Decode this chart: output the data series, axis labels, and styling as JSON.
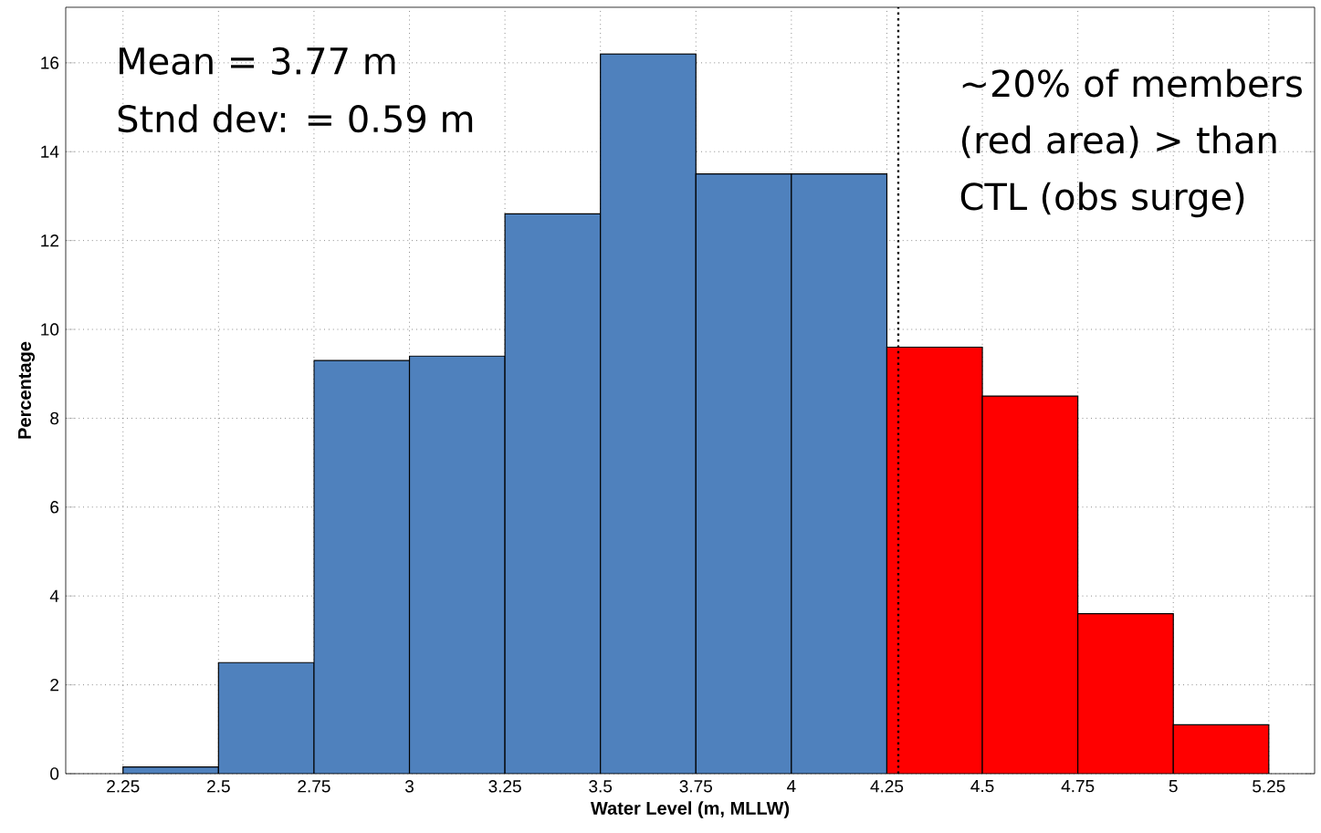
{
  "chart_data": {
    "type": "histogram",
    "xlabel": "Water Level (m, MLLW)",
    "ylabel": "Percentage",
    "bins": [
      2.25,
      2.5,
      2.75,
      3,
      3.25,
      3.5,
      3.75,
      4,
      4.25,
      4.5,
      4.75,
      5,
      5.25
    ],
    "values": [
      0.15,
      2.5,
      9.3,
      9.4,
      12.6,
      16.2,
      13.5,
      13.5,
      9.6,
      8.5,
      3.6,
      1.1
    ],
    "colors": [
      "#4f81bd",
      "#4f81bd",
      "#4f81bd",
      "#4f81bd",
      "#4f81bd",
      "#4f81bd",
      "#4f81bd",
      "#4f81bd",
      "#ff0000",
      "#ff0000",
      "#ff0000",
      "#ff0000"
    ],
    "xlim": [
      2.1,
      5.37
    ],
    "ylim": [
      0,
      17.25
    ],
    "xticks": [
      2.25,
      2.5,
      2.75,
      3,
      3.25,
      3.5,
      3.75,
      4,
      4.25,
      4.5,
      4.75,
      5,
      5.25
    ],
    "yticks": [
      0,
      2,
      4,
      6,
      8,
      10,
      12,
      14,
      16
    ],
    "grid": true,
    "ref_lines": [
      {
        "axis": "x",
        "value": 4.28,
        "color": "#000000",
        "line_style": "dotted"
      }
    ],
    "annotations": [
      "Mean = 3.77 m",
      "Stnd dev: = 0.59 m",
      "~20% of members (red area) > than CTL (obs surge)"
    ]
  }
}
